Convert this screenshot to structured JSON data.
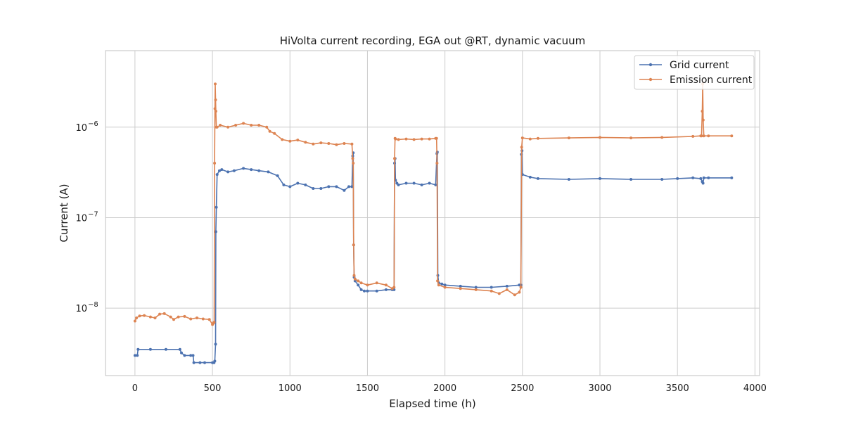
{
  "chart_data": {
    "type": "line",
    "title": "HiVolta current recording, EGA out @RT, dynamic vacuum",
    "xlabel": "Elapsed time (h)",
    "ylabel": "Current (A)",
    "xlim": [
      -190,
      4030
    ],
    "ylim": [
      1.8e-09,
      7e-06
    ],
    "yscale": "log",
    "grid": true,
    "legend_position": "top-right",
    "x_ticks": [
      0,
      500,
      1000,
      1500,
      2000,
      2500,
      3000,
      3500,
      4000
    ],
    "x_tick_labels": [
      "0",
      "500",
      "1000",
      "1500",
      "2000",
      "2500",
      "3000",
      "3500",
      "4000"
    ],
    "y_ticks": [
      1e-08,
      1e-07,
      1e-06
    ],
    "y_tick_labels": [
      {
        "base": "10",
        "exp": "−8"
      },
      {
        "base": "10",
        "exp": "−7"
      },
      {
        "base": "10",
        "exp": "−6"
      }
    ],
    "series": [
      {
        "name": "Grid current",
        "color": "#4c72b0",
        "x": [
          0,
          15,
          20,
          100,
          200,
          290,
          300,
          320,
          360,
          375,
          380,
          420,
          450,
          500,
          510,
          515,
          520,
          522,
          525,
          530,
          545,
          560,
          600,
          640,
          700,
          750,
          800,
          860,
          920,
          960,
          1000,
          1050,
          1100,
          1150,
          1200,
          1250,
          1300,
          1350,
          1380,
          1400,
          1405,
          1408,
          1411,
          1414,
          1420,
          1440,
          1460,
          1480,
          1500,
          1560,
          1620,
          1660,
          1672,
          1675,
          1678,
          1681,
          1690,
          1700,
          1750,
          1800,
          1850,
          1900,
          1940,
          1948,
          1951,
          1954,
          1960,
          1980,
          2000,
          2100,
          2200,
          2300,
          2400,
          2480,
          2490,
          2493,
          2497,
          2500,
          2550,
          2600,
          2800,
          3000,
          3200,
          3400,
          3500,
          3600,
          3650,
          3660,
          3665,
          3670,
          3700,
          3850
        ],
        "y": [
          3e-09,
          3e-09,
          3.5e-09,
          3.5e-09,
          3.5e-09,
          3.5e-09,
          3.2e-09,
          3e-09,
          3e-09,
          3e-09,
          2.5e-09,
          2.5e-09,
          2.5e-09,
          2.5e-09,
          2.5e-09,
          2.6e-09,
          4e-09,
          7e-08,
          1.3e-07,
          3e-07,
          3.3e-07,
          3.4e-07,
          3.2e-07,
          3.3e-07,
          3.5e-07,
          3.4e-07,
          3.3e-07,
          3.2e-07,
          2.9e-07,
          2.3e-07,
          2.2e-07,
          2.4e-07,
          2.3e-07,
          2.1e-07,
          2.1e-07,
          2.2e-07,
          2.2e-07,
          2e-07,
          2.2e-07,
          2.2e-07,
          4.8e-07,
          5.2e-07,
          5e-08,
          2.2e-08,
          2e-08,
          1.8e-08,
          1.6e-08,
          1.55e-08,
          1.55e-08,
          1.55e-08,
          1.6e-08,
          1.6e-08,
          1.6e-08,
          4e-07,
          4.5e-07,
          2.6e-07,
          2.4e-07,
          2.3e-07,
          2.4e-07,
          2.4e-07,
          2.3e-07,
          2.4e-07,
          2.3e-07,
          5.1e-07,
          5.3e-07,
          2.3e-08,
          1.9e-08,
          1.85e-08,
          1.8e-08,
          1.75e-08,
          1.7e-08,
          1.7e-08,
          1.75e-08,
          1.8e-08,
          1.8e-08,
          5e-07,
          5.5e-07,
          3e-07,
          2.8e-07,
          2.7e-07,
          2.65e-07,
          2.7e-07,
          2.65e-07,
          2.65e-07,
          2.7e-07,
          2.75e-07,
          2.7e-07,
          2.5e-07,
          2.4e-07,
          2.75e-07,
          2.75e-07,
          2.75e-07
        ]
      },
      {
        "name": "Emission current",
        "color": "#dd8452",
        "x": [
          0,
          10,
          30,
          60,
          100,
          130,
          160,
          190,
          230,
          250,
          280,
          320,
          360,
          400,
          440,
          480,
          500,
          505,
          508,
          511,
          514,
          516,
          518,
          520,
          522,
          525,
          530,
          550,
          600,
          650,
          700,
          750,
          800,
          850,
          870,
          900,
          950,
          1000,
          1050,
          1100,
          1150,
          1200,
          1250,
          1300,
          1350,
          1400,
          1405,
          1408,
          1411,
          1414,
          1420,
          1440,
          1460,
          1500,
          1560,
          1620,
          1660,
          1672,
          1675,
          1678,
          1681,
          1700,
          1750,
          1800,
          1850,
          1900,
          1940,
          1946,
          1949,
          1952,
          1960,
          2000,
          2100,
          2200,
          2300,
          2350,
          2400,
          2450,
          2480,
          2490,
          2495,
          2500,
          2550,
          2600,
          2800,
          3000,
          3200,
          3400,
          3600,
          3650,
          3655,
          3660,
          3663,
          3666,
          3670,
          3700,
          3850
        ],
        "y": [
          7.2e-09,
          7.8e-09,
          8.2e-09,
          8.3e-09,
          8e-09,
          7.8e-09,
          8.6e-09,
          8.7e-09,
          8e-09,
          7.5e-09,
          8e-09,
          8.1e-09,
          7.6e-09,
          7.8e-09,
          7.6e-09,
          7.5e-09,
          6.6e-09,
          6.8e-09,
          6.9e-09,
          7e-09,
          4e-07,
          1.6e-06,
          3e-06,
          2e-06,
          1.5e-06,
          1e-06,
          1e-06,
          1.05e-06,
          1e-06,
          1.05e-06,
          1.1e-06,
          1.05e-06,
          1.05e-06,
          1e-06,
          9e-07,
          8.5e-07,
          7.3e-07,
          7e-07,
          7.2e-07,
          6.8e-07,
          6.5e-07,
          6.7e-07,
          6.6e-07,
          6.4e-07,
          6.6e-07,
          6.5e-07,
          4.5e-07,
          4e-07,
          5e-08,
          2.3e-08,
          2.1e-08,
          2e-08,
          1.9e-08,
          1.8e-08,
          1.9e-08,
          1.8e-08,
          1.65e-08,
          1.7e-08,
          4.5e-07,
          7.5e-07,
          7.4e-07,
          7.3e-07,
          7.4e-07,
          7.3e-07,
          7.4e-07,
          7.4e-07,
          7.5e-07,
          7.5e-07,
          4e-07,
          2e-08,
          1.8e-08,
          1.7e-08,
          1.65e-08,
          1.6e-08,
          1.55e-08,
          1.45e-08,
          1.6e-08,
          1.4e-08,
          1.5e-08,
          1.7e-08,
          6e-07,
          7.6e-07,
          7.4e-07,
          7.5e-07,
          7.6e-07,
          7.7e-07,
          7.6e-07,
          7.7e-07,
          7.9e-07,
          8e-07,
          8e-07,
          1.5e-06,
          3e-06,
          1.2e-06,
          8e-07,
          8e-07,
          8e-07
        ]
      }
    ]
  }
}
